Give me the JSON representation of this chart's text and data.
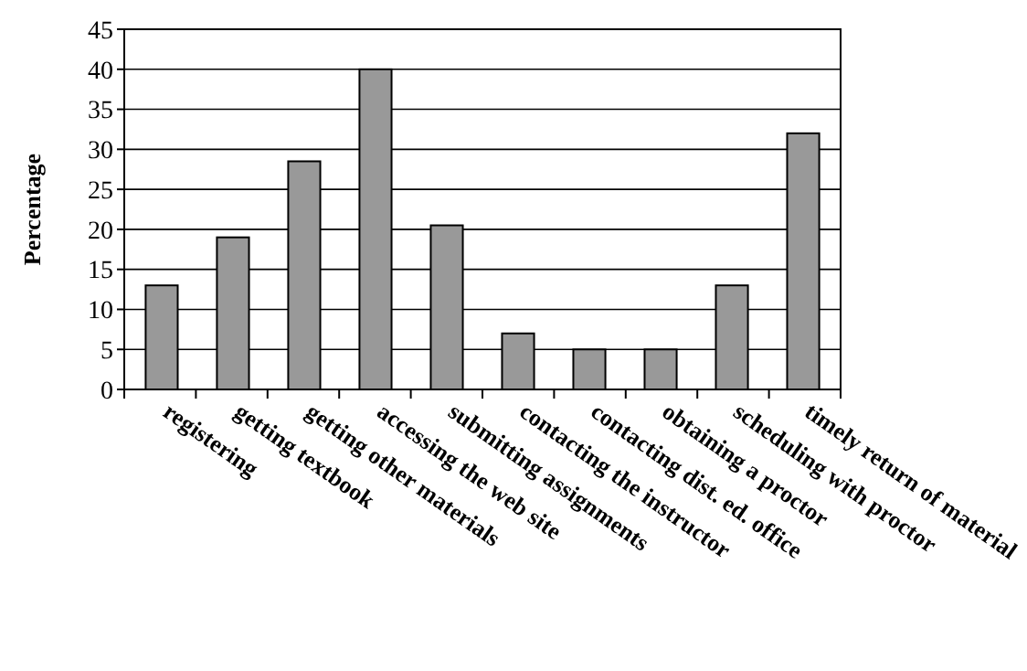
{
  "chart_data": {
    "type": "bar",
    "ylabel": "Percentage",
    "categories": [
      "registering",
      "getting textbook",
      "getting other materials",
      "accessing the web site",
      "submitting assignments",
      "contacting the instructor",
      "contacting dist. ed. office",
      "obtaining a proctor",
      "scheduling with proctor",
      "timely return of material"
    ],
    "values": [
      13,
      19,
      28.5,
      40,
      20.5,
      7,
      5,
      5,
      13,
      32
    ],
    "color": "#999999",
    "ylim": [
      0,
      45
    ],
    "yticks": [
      0,
      5,
      10,
      15,
      20,
      25,
      30,
      35,
      40,
      45
    ],
    "grid": "y"
  }
}
